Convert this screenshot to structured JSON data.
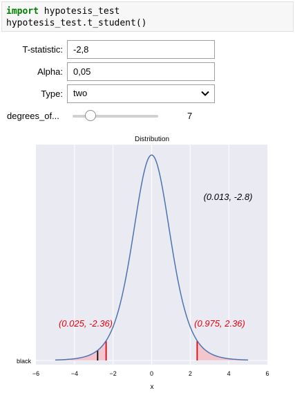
{
  "code": {
    "keyword": "import",
    "line1_rest": " hypotesis_test",
    "line2": "hypotesis_test.t_student()"
  },
  "widgets": {
    "t_statistic": {
      "label": "T-statistic:",
      "value": "-2,8"
    },
    "alpha": {
      "label": "Alpha:",
      "value": "0,05"
    },
    "type": {
      "label": "Type:",
      "selected": "two"
    },
    "degrees_of_freedom": {
      "label": "degrees_of...",
      "value": 7,
      "value_text": "7",
      "min": 1,
      "max": 30
    }
  },
  "chart_data": {
    "type": "line",
    "title": "Distribution",
    "xlabel": "x",
    "ylabel": "",
    "xlim": [
      -6,
      6
    ],
    "x_ticks": [
      "−6",
      "−4",
      "−2",
      "0",
      "2",
      "4",
      "6"
    ],
    "y_tick_label": "black",
    "grid": true,
    "background_color": "#eaeaf2",
    "curve_color": "#4c72b0",
    "critical_color": "#e8000b",
    "statistic_color": "#000000",
    "shade_color": "#f4c0c8",
    "series": [
      {
        "distribution": "student_t",
        "df": 7,
        "x_range": [
          -5,
          5
        ]
      }
    ],
    "critical_values": [
      -2.36,
      2.36
    ],
    "t_statistic": -2.8,
    "annotations": [
      {
        "text": "(0.013, -2.8)",
        "color": "#000000"
      },
      {
        "text": "(0.025, -2.36)",
        "color": "#e8000b"
      },
      {
        "text": "(0.975, 2.36)",
        "color": "#e8000b"
      }
    ]
  }
}
